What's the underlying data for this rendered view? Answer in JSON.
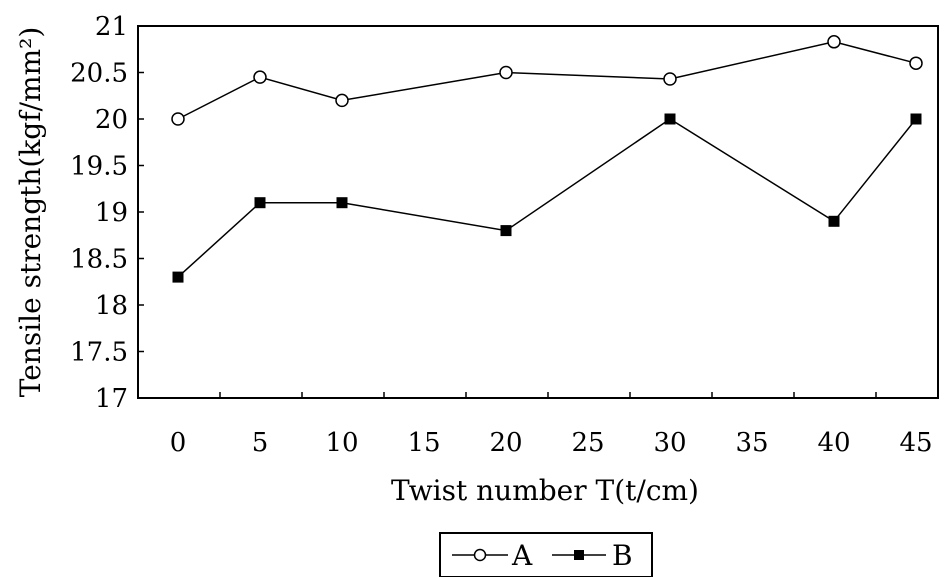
{
  "chart_data": {
    "type": "line",
    "xlabel": "Twist number T(t/cm)",
    "ylabel": "Tensile strength(kgf/mm²)",
    "categories": [
      "0",
      "5",
      "10",
      "15",
      "20",
      "25",
      "30",
      "35",
      "40",
      "45"
    ],
    "ylim": [
      17,
      21
    ],
    "yticks": [
      "17",
      "17.5",
      "18",
      "18.5",
      "19",
      "19.5",
      "20",
      "20.5",
      "21"
    ],
    "series": [
      {
        "name": "A",
        "marker": "open-circle",
        "color": "#000000",
        "points": [
          {
            "x": "0",
            "y": 20.0
          },
          {
            "x": "5",
            "y": 20.45
          },
          {
            "x": "10",
            "y": 20.2
          },
          {
            "x": "20",
            "y": 20.5
          },
          {
            "x": "30",
            "y": 20.43
          },
          {
            "x": "40",
            "y": 20.83
          },
          {
            "x": "45",
            "y": 20.6
          }
        ]
      },
      {
        "name": "B",
        "marker": "filled-square",
        "color": "#000000",
        "points": [
          {
            "x": "0",
            "y": 18.3
          },
          {
            "x": "5",
            "y": 19.1
          },
          {
            "x": "10",
            "y": 19.1
          },
          {
            "x": "20",
            "y": 18.8
          },
          {
            "x": "30",
            "y": 20.0
          },
          {
            "x": "40",
            "y": 18.9
          },
          {
            "x": "45",
            "y": 20.0
          }
        ]
      }
    ],
    "legend_position": "bottom-center",
    "grid": false
  }
}
